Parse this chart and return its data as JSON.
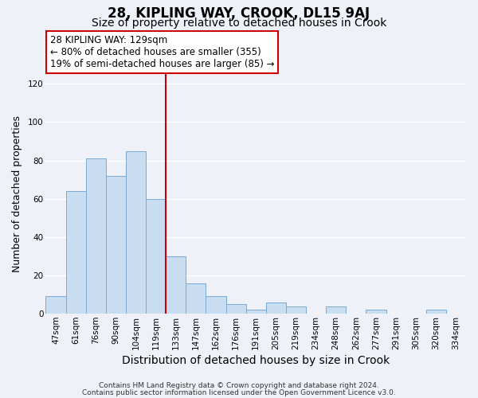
{
  "title": "28, KIPLING WAY, CROOK, DL15 9AJ",
  "subtitle": "Size of property relative to detached houses in Crook",
  "xlabel": "Distribution of detached houses by size in Crook",
  "ylabel": "Number of detached properties",
  "bar_labels": [
    "47sqm",
    "61sqm",
    "76sqm",
    "90sqm",
    "104sqm",
    "119sqm",
    "133sqm",
    "147sqm",
    "162sqm",
    "176sqm",
    "191sqm",
    "205sqm",
    "219sqm",
    "234sqm",
    "248sqm",
    "262sqm",
    "277sqm",
    "291sqm",
    "305sqm",
    "320sqm",
    "334sqm"
  ],
  "bar_values": [
    9,
    64,
    81,
    72,
    85,
    60,
    30,
    16,
    9,
    5,
    2,
    6,
    4,
    0,
    4,
    0,
    2,
    0,
    0,
    2,
    0
  ],
  "bar_color": "#c9ddf0",
  "bar_edgecolor": "#7baad4",
  "ylim": [
    0,
    125
  ],
  "yticks": [
    0,
    20,
    40,
    60,
    80,
    100,
    120
  ],
  "vline_x_index": 6,
  "vline_color": "#cc0000",
  "annotation_title": "28 KIPLING WAY: 129sqm",
  "annotation_line1": "← 80% of detached houses are smaller (355)",
  "annotation_line2": "19% of semi-detached houses are larger (85) →",
  "annotation_box_facecolor": "#ffffff",
  "annotation_box_edgecolor": "#cc0000",
  "footer1": "Contains HM Land Registry data © Crown copyright and database right 2024.",
  "footer2": "Contains public sector information licensed under the Open Government Licence v3.0.",
  "bg_color": "#eef2f8",
  "plot_bg_color": "#eef2f8",
  "grid_color": "#ffffff",
  "title_fontsize": 12,
  "subtitle_fontsize": 10,
  "xlabel_fontsize": 10,
  "ylabel_fontsize": 9,
  "tick_fontsize": 7.5,
  "annotation_fontsize": 8.5,
  "footer_fontsize": 6.5
}
